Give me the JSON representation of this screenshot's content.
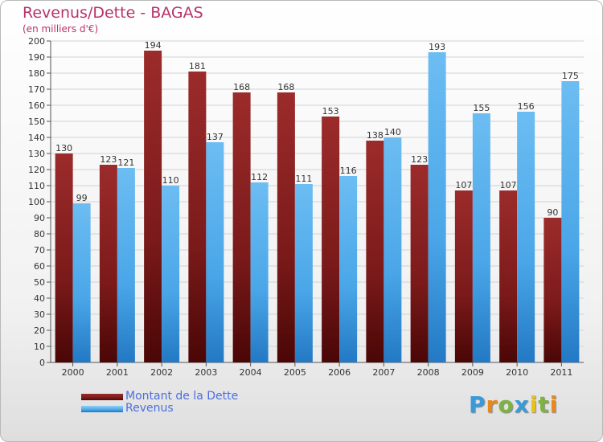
{
  "title": "Revenus/Dette - BAGAS",
  "subtitle": "(en milliers d'€)",
  "logo": {
    "text": "Proxiti",
    "letters": [
      {
        "char": "P",
        "color": "#3a9ad9"
      },
      {
        "char": "r",
        "color": "#e8891d"
      },
      {
        "char": "o",
        "color": "#7cb342"
      },
      {
        "char": "x",
        "color": "#3a9ad9"
      },
      {
        "char": "i",
        "color": "#e8c21d"
      },
      {
        "char": "t",
        "color": "#7cb342"
      },
      {
        "char": "i",
        "color": "#e8891d"
      }
    ]
  },
  "chart_data": {
    "type": "bar",
    "categories": [
      "2000",
      "2001",
      "2002",
      "2003",
      "2004",
      "2005",
      "2006",
      "2007",
      "2008",
      "2009",
      "2010",
      "2011"
    ],
    "series": [
      {
        "name": "Montant de la Dette",
        "values": [
          130,
          123,
          194,
          181,
          168,
          168,
          153,
          138,
          123,
          107,
          107,
          90
        ],
        "color": "#7b1a1a"
      },
      {
        "name": "Revenus",
        "values": [
          99,
          121,
          110,
          137,
          112,
          111,
          116,
          140,
          193,
          155,
          156,
          175
        ],
        "color": "#4aa6e8"
      }
    ],
    "yticks": [
      0,
      10,
      20,
      30,
      40,
      50,
      60,
      70,
      80,
      90,
      100,
      110,
      120,
      130,
      140,
      150,
      160,
      170,
      180,
      190,
      200
    ],
    "ylim": [
      0,
      200
    ],
    "grid": true,
    "legend": "bottom-left"
  }
}
